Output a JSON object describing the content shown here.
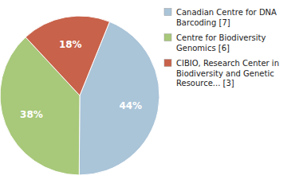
{
  "chart_data": {
    "type": "pie",
    "categories": [
      "Canadian Centre for DNA\nBarcoding [7]",
      "Centre for Biodiversity\nGenomics [6]",
      "CIBIO, Research Center in\nBiodiversity and Genetic\nResource... [3]"
    ],
    "values": [
      44,
      38,
      18
    ],
    "value_labels": [
      "44%",
      "38%",
      "18%"
    ],
    "colors": [
      "#aac4d8",
      "#a8c87a",
      "#c8624a"
    ],
    "data_labels": true,
    "legend": "right"
  }
}
